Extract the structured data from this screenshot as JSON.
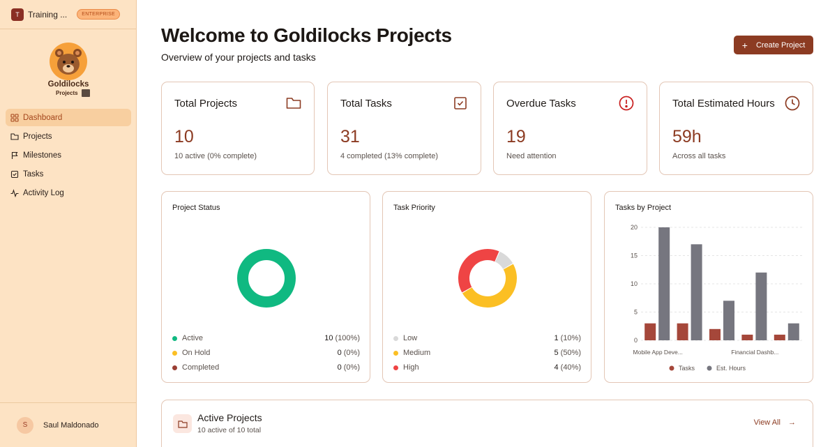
{
  "workspace": {
    "avatar": "T",
    "name": "Training ...",
    "badge": "ENTERPRISE"
  },
  "logo": {
    "word": "Goldilocks",
    "sub": "Projects"
  },
  "sidebar": {
    "items": [
      {
        "label": "Dashboard",
        "icon": "grid-icon",
        "active": true
      },
      {
        "label": "Projects",
        "icon": "folder-icon"
      },
      {
        "label": "Milestones",
        "icon": "flag-icon"
      },
      {
        "label": "Tasks",
        "icon": "check-square-icon"
      },
      {
        "label": "Activity Log",
        "icon": "activity-icon"
      }
    ]
  },
  "user": {
    "initial": "S",
    "name": "Saul Maldonado"
  },
  "header": {
    "title": "Welcome to Goldilocks Projects",
    "subtitle": "Overview of your projects and tasks",
    "create_label": "Create Project"
  },
  "stats": [
    {
      "title": "Total Projects",
      "value": "10",
      "note": "10 active (0% complete)",
      "icon": "folder-icon"
    },
    {
      "title": "Total Tasks",
      "value": "31",
      "note": "4 completed (13% complete)",
      "icon": "check-square-icon"
    },
    {
      "title": "Overdue Tasks",
      "value": "19",
      "note": "Need attention",
      "icon": "alert-circle-icon"
    },
    {
      "title": "Total Estimated Hours",
      "value": "59h",
      "note": "Across all tasks",
      "icon": "clock-icon"
    }
  ],
  "colors": {
    "accent": "#8c3b22",
    "active": "#10b981",
    "on_hold": "#fbbf24",
    "completed": "#9a3f34",
    "low": "#d9d9d9",
    "medium": "#fbbf24",
    "high": "#ef4444",
    "tasks_bar": "#a5473a",
    "hours_bar": "#76767f"
  },
  "project_status": {
    "title": "Project Status",
    "legend": [
      {
        "label": "Active",
        "count": "10",
        "pct": "(100%)",
        "value": 10
      },
      {
        "label": "On Hold",
        "count": "0",
        "pct": "(0%)",
        "value": 0
      },
      {
        "label": "Completed",
        "count": "0",
        "pct": "(0%)",
        "value": 0
      }
    ]
  },
  "task_priority": {
    "title": "Task Priority",
    "legend": [
      {
        "label": "Low",
        "count": "1",
        "pct": "(10%)",
        "value": 1
      },
      {
        "label": "Medium",
        "count": "5",
        "pct": "(50%)",
        "value": 5
      },
      {
        "label": "High",
        "count": "4",
        "pct": "(40%)",
        "value": 4
      }
    ]
  },
  "tasks_by_project": {
    "title": "Tasks by Project",
    "legend": [
      "Tasks",
      "Est. Hours"
    ]
  },
  "chart_data": {
    "type": "bar",
    "title": "Tasks by Project",
    "categories": [
      "Mobile App Deve...",
      "",
      "",
      "Financial Dashb...",
      ""
    ],
    "series": [
      {
        "name": "Tasks",
        "values": [
          3,
          3,
          2,
          1,
          1
        ]
      },
      {
        "name": "Est. Hours",
        "values": [
          20,
          17,
          7,
          12,
          3
        ]
      }
    ],
    "ylim": [
      0,
      20
    ],
    "yticks": [
      "0",
      "5",
      "10",
      "15",
      "20"
    ],
    "grid": true,
    "legend": "bottom"
  },
  "active_projects": {
    "title": "Active Projects",
    "subtitle": "10 active of 10 total",
    "view_all": "View All"
  }
}
